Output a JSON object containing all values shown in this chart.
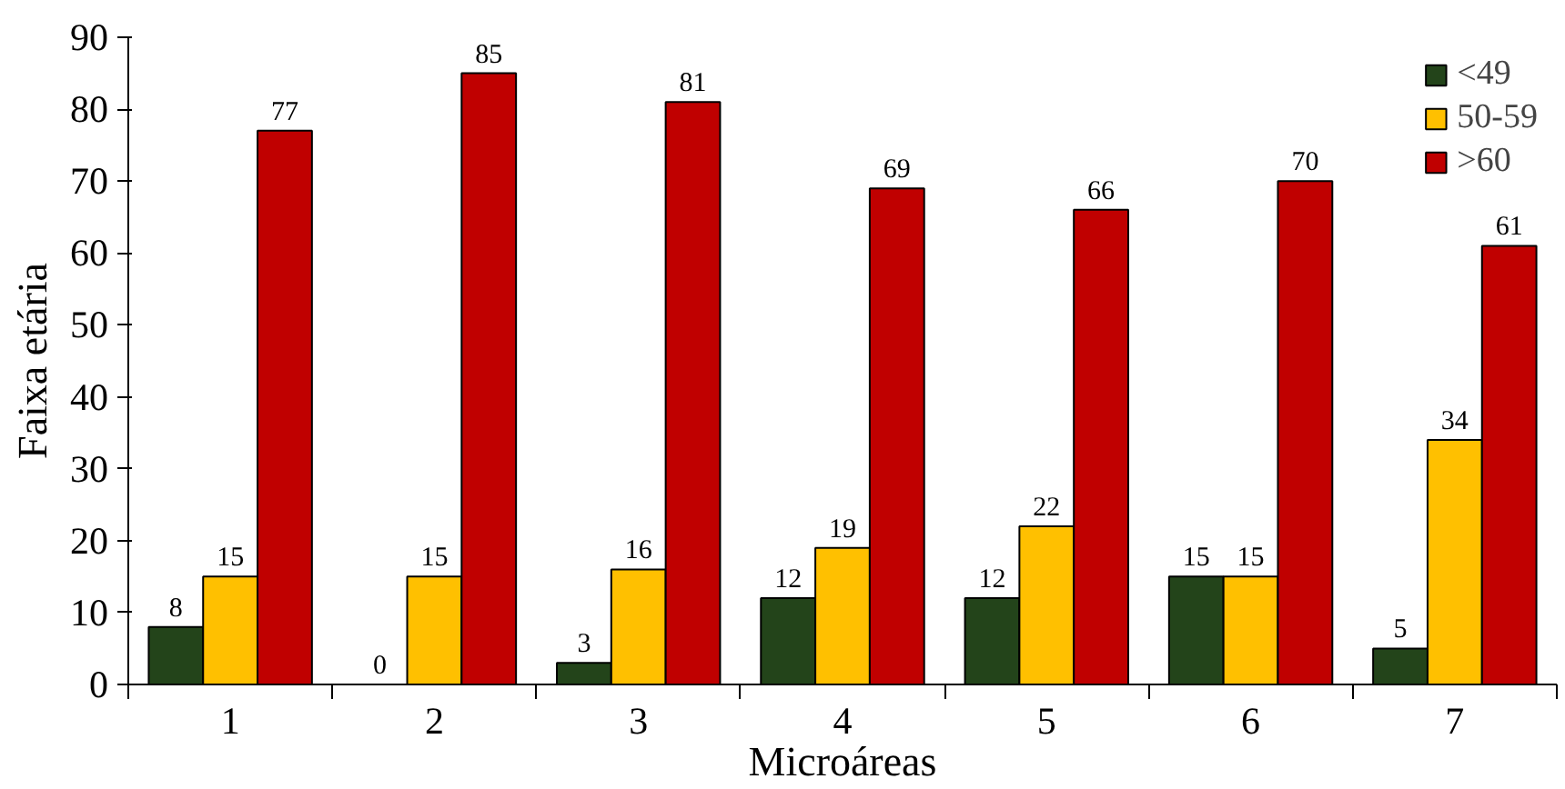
{
  "chart_data": {
    "type": "bar",
    "xlabel": "Microáreas",
    "ylabel": "Faixa etária",
    "categories": [
      "1",
      "2",
      "3",
      "4",
      "5",
      "6",
      "7"
    ],
    "series": [
      {
        "name": "<49",
        "color": "#23441a",
        "values": [
          8,
          0,
          3,
          12,
          12,
          15,
          5
        ]
      },
      {
        "name": "50-59",
        "color": "#ffc000",
        "values": [
          15,
          15,
          16,
          19,
          22,
          15,
          34
        ]
      },
      {
        "name": ">60",
        "color": "#c00000",
        "values": [
          77,
          85,
          81,
          69,
          66,
          70,
          61
        ]
      }
    ],
    "ylim": [
      0,
      90
    ],
    "yticks": [
      0,
      10,
      20,
      30,
      40,
      50,
      60,
      70,
      80,
      90
    ],
    "data_labels": true,
    "grid": false,
    "legend": "top right"
  }
}
